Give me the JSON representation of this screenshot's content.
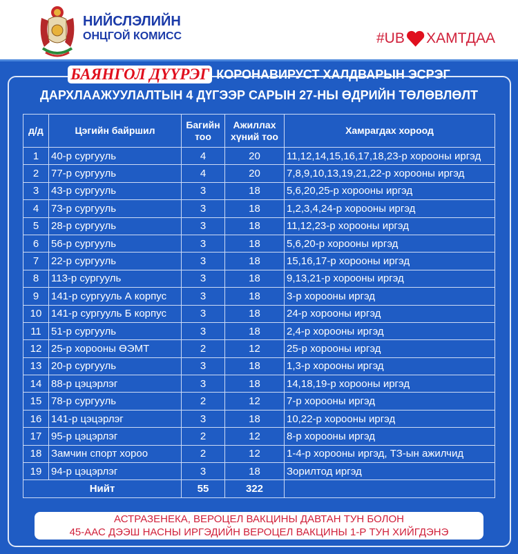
{
  "header": {
    "org_line1": "НИЙСЛЭЛИЙН",
    "org_line2": "ОНЦГОЙ КОМИСС",
    "hashtag_left": "#UB",
    "hashtag_right": "ХАМТДАА"
  },
  "title": {
    "district": "БАЯНГОЛ ДҮҮРЭГ",
    "line1_rest": "КОРОНАВИРУСТ ХАЛДВАРЫН ЭСРЭГ",
    "line2": "ДАРХЛААЖУУЛАЛТЫН 4 ДҮГЭЭР САРЫН 27-НЫ ӨДРИЙН ТӨЛӨВЛӨЛТ"
  },
  "table": {
    "headers": [
      "д/д",
      "Цэгийн байршил",
      "Багийн тоо",
      "Ажиллах хүний тоо",
      "Хамрагдах хороод"
    ],
    "rows": [
      [
        "1",
        "40-р сургууль",
        "4",
        "20",
        "11,12,14,15,16,17,18,23-р хорооны иргэд"
      ],
      [
        "2",
        "77-р сургууль",
        "4",
        "20",
        "7,8,9,10,13,19,21,22-р хорооны иргэд"
      ],
      [
        "3",
        "43-р сургууль",
        "3",
        "18",
        "5,6,20,25-р хорооны иргэд"
      ],
      [
        "4",
        "73-р сургууль",
        "3",
        "18",
        "1,2,3,4,24-р хорооны иргэд"
      ],
      [
        "5",
        "28-р сургууль",
        "3",
        "18",
        "11,12,23-р хорооны иргэд"
      ],
      [
        "6",
        "56-р сургууль",
        "3",
        "18",
        "5,6,20-р хорооны иргэд"
      ],
      [
        "7",
        "22-р сургууль",
        "3",
        "18",
        "15,16,17-р хорооны иргэд"
      ],
      [
        "8",
        "113-р сургууль",
        "3",
        "18",
        "9,13,21-р хорооны иргэд"
      ],
      [
        "9",
        "141-р сургууль А корпус",
        "3",
        "18",
        "3-р хорооны иргэд"
      ],
      [
        "10",
        "141-р сургууль Б корпус",
        "3",
        "18",
        "24-р хорооны иргэд"
      ],
      [
        "11",
        "51-р сургууль",
        "3",
        "18",
        "2,4-р хорооны иргэд"
      ],
      [
        "12",
        "25-р хорооны ӨЭМТ",
        "2",
        "12",
        "25-р хорооны иргэд"
      ],
      [
        "13",
        "20-р сургууль",
        "3",
        "18",
        "1,3-р хорооны иргэд"
      ],
      [
        "14",
        "88-р цэцэрлэг",
        "3",
        "18",
        "14,18,19-р хорооны иргэд"
      ],
      [
        "15",
        "78-р сургууль",
        "2",
        "12",
        "7-р хорооны иргэд"
      ],
      [
        "16",
        "141-р цэцэрлэг",
        "3",
        "18",
        "10,22-р хорооны иргэд"
      ],
      [
        "17",
        "95-р цэцэрлэг",
        "2",
        "12",
        "8-р хорооны иргэд"
      ],
      [
        "18",
        "Замчин спорт хороо",
        "2",
        "12",
        "1-4-р хорооны иргэд, ТЗ-ын ажилчид"
      ],
      [
        "19",
        "94-р цэцэрлэг",
        "3",
        "18",
        "Зорилтод иргэд"
      ]
    ],
    "total": {
      "label": "Нийт",
      "teams": "55",
      "staff": "322"
    }
  },
  "banner": {
    "line1": "АСТРАЗЕНЕКА, ВЕРОЦЕЛ ВАКЦИНЫ ДАВТАН ТУН БОЛОН",
    "line2": "45-ААС ДЭЭШ НАСНЫ ИРГЭДИЙН ВЕРОЦЕЛ ВАКЦИНЫ 1-Р ТУН ХИЙГДЭНЭ"
  },
  "colors": {
    "background": "#1f5cc4",
    "accent_red": "#d0203a",
    "org_blue": "#1a3aa8"
  }
}
